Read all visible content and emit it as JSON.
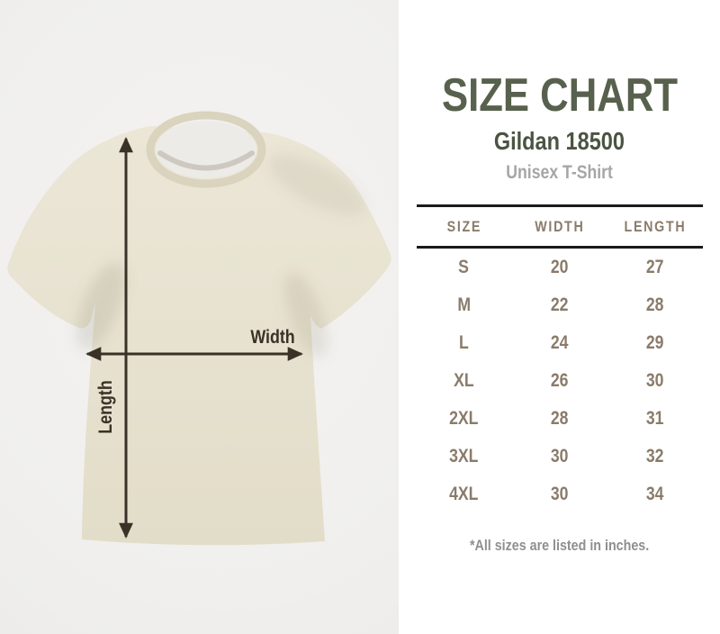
{
  "photo": {
    "width_label": "Width",
    "length_label": "Length"
  },
  "panel": {
    "title": "SIZE CHART",
    "product": "Gildan 18500",
    "product_type": "Unisex T-Shirt",
    "footnote": "*All sizes are listed in inches."
  },
  "chart_data": {
    "type": "table",
    "title": "SIZE CHART",
    "subtitle": "Gildan 18500 Unisex T-Shirt",
    "columns": [
      "SIZE",
      "WIDTH",
      "LENGTH"
    ],
    "rows": [
      [
        "S",
        "20",
        "27"
      ],
      [
        "M",
        "22",
        "28"
      ],
      [
        "L",
        "24",
        "29"
      ],
      [
        "XL",
        "26",
        "30"
      ],
      [
        "2XL",
        "28",
        "31"
      ],
      [
        "3XL",
        "30",
        "32"
      ],
      [
        "4XL",
        "30",
        "34"
      ]
    ],
    "note": "*All sizes are listed in inches.",
    "units": "inches"
  },
  "colors": {
    "title-green": "#57614d",
    "product-green": "#4b5442",
    "muted-gray": "#a6a6a6",
    "table-text": "#8a7b6a",
    "rule-black": "#1a1a1a",
    "footnote-gray": "#8f8f8f",
    "arrow-color": "#3a3127",
    "shirt-color": "#e7e2d0",
    "photo-bg": "#f0efed",
    "panel-bg": "#ffffff"
  }
}
